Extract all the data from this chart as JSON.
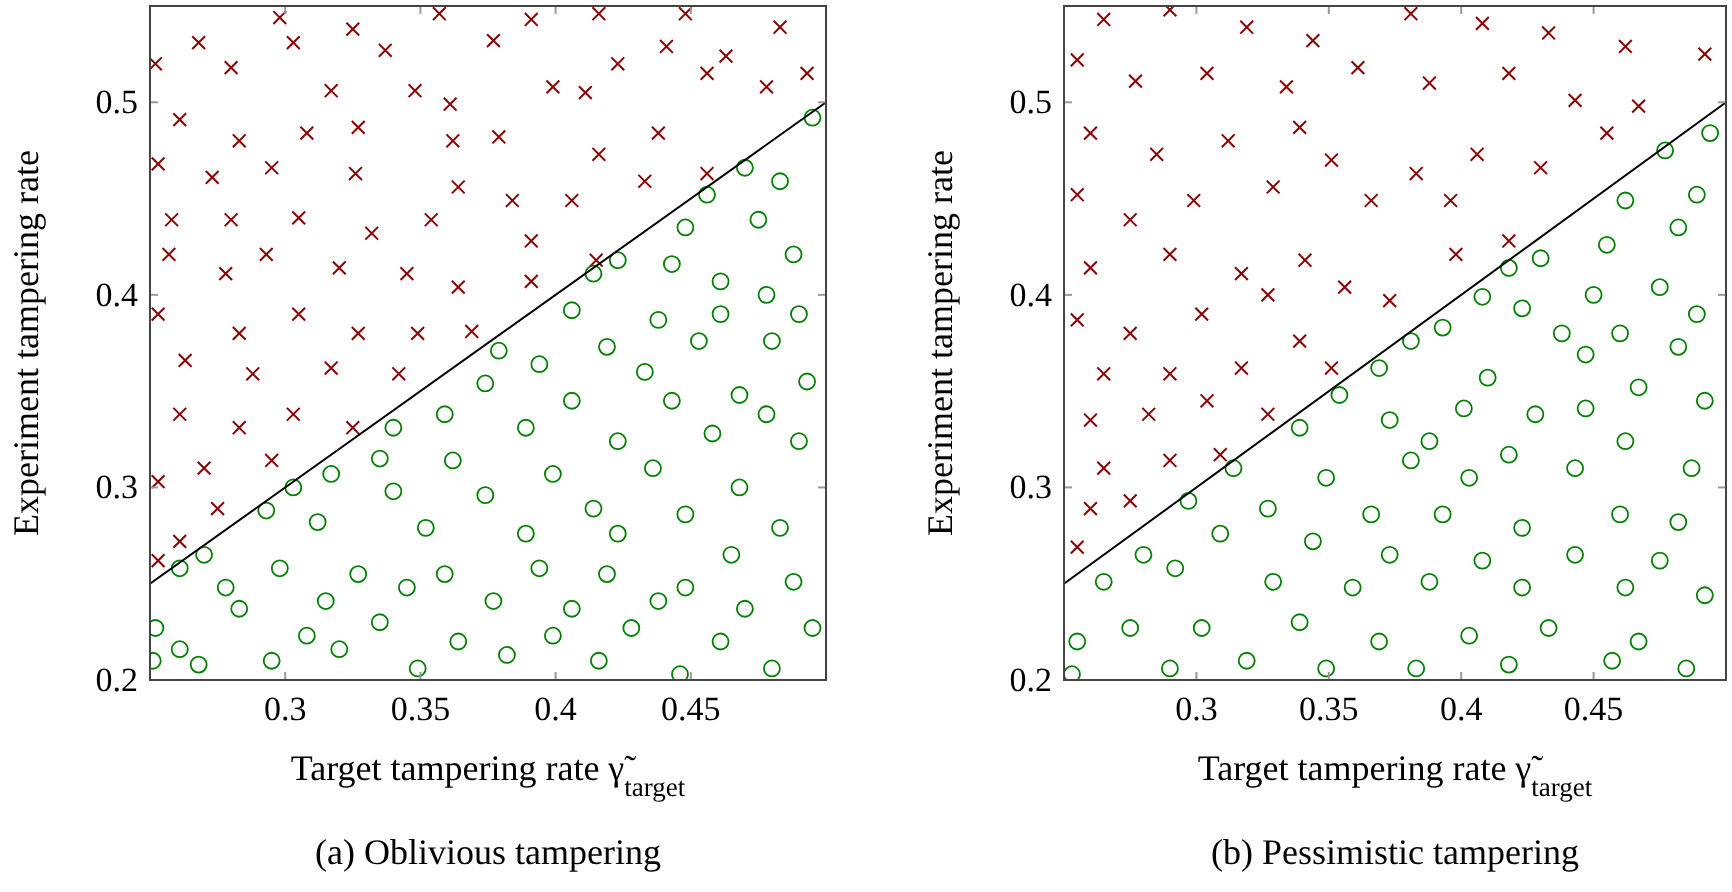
{
  "chart_data": [
    {
      "type": "scatter",
      "title": "(a) Oblivious tampering",
      "xlabel": "Target tampering rate γ̃$_{target}$",
      "ylabel": "Experiment tampering rate",
      "xlim": [
        0.25,
        0.5
      ],
      "ylim": [
        0.2,
        0.55
      ],
      "xticks": [
        0.3,
        0.35,
        0.4,
        0.45
      ],
      "yticks": [
        0.2,
        0.3,
        0.4,
        0.5
      ],
      "series": [
        {
          "marker": "cross",
          "color": "#8b0000",
          "x": [
            0.298,
            0.325,
            0.357,
            0.391,
            0.416,
            0.448,
            0.483,
            0.268,
            0.303,
            0.337,
            0.377,
            0.423,
            0.441,
            0.463,
            0.493,
            0.252,
            0.28,
            0.317,
            0.348,
            0.361,
            0.399,
            0.411,
            0.456,
            0.478,
            0.261,
            0.283,
            0.308,
            0.327,
            0.362,
            0.379,
            0.416,
            0.438,
            0.253,
            0.273,
            0.295,
            0.326,
            0.364,
            0.384,
            0.406,
            0.433,
            0.456,
            0.258,
            0.28,
            0.305,
            0.332,
            0.354,
            0.391,
            0.257,
            0.278,
            0.293,
            0.32,
            0.345,
            0.364,
            0.391,
            0.415,
            0.253,
            0.283,
            0.305,
            0.327,
            0.349,
            0.369,
            0.263,
            0.288,
            0.317,
            0.342,
            0.261,
            0.283,
            0.303,
            0.325,
            0.27,
            0.295,
            0.253,
            0.275,
            0.261,
            0.253
          ],
          "values": [
            0.544,
            0.538,
            0.546,
            0.543,
            0.546,
            0.546,
            0.539,
            0.531,
            0.531,
            0.527,
            0.532,
            0.52,
            0.529,
            0.524,
            0.515,
            0.52,
            0.518,
            0.506,
            0.506,
            0.499,
            0.508,
            0.505,
            0.515,
            0.508,
            0.491,
            0.48,
            0.484,
            0.487,
            0.48,
            0.482,
            0.473,
            0.484,
            0.468,
            0.461,
            0.466,
            0.463,
            0.456,
            0.449,
            0.449,
            0.459,
            0.463,
            0.439,
            0.439,
            0.44,
            0.432,
            0.439,
            0.428,
            0.421,
            0.411,
            0.421,
            0.414,
            0.411,
            0.404,
            0.407,
            0.418,
            0.39,
            0.38,
            0.39,
            0.38,
            0.38,
            0.381,
            0.366,
            0.359,
            0.362,
            0.359,
            0.338,
            0.331,
            0.338,
            0.331,
            0.31,
            0.314,
            0.303,
            0.289,
            0.272,
            0.262
          ]
        },
        {
          "marker": "circle",
          "color": "#008000",
          "x": [
            0.495,
            0.47,
            0.483,
            0.456,
            0.475,
            0.448,
            0.488,
            0.423,
            0.461,
            0.478,
            0.443,
            0.414,
            0.49,
            0.461,
            0.438,
            0.406,
            0.419,
            0.453,
            0.48,
            0.379,
            0.394,
            0.433,
            0.468,
            0.493,
            0.374,
            0.406,
            0.443,
            0.478,
            0.359,
            0.34,
            0.389,
            0.423,
            0.458,
            0.49,
            0.335,
            0.362,
            0.399,
            0.436,
            0.468,
            0.303,
            0.317,
            0.34,
            0.374,
            0.414,
            0.448,
            0.483,
            0.293,
            0.312,
            0.352,
            0.389,
            0.423,
            0.465,
            0.27,
            0.298,
            0.327,
            0.359,
            0.394,
            0.419,
            0.448,
            0.488,
            0.261,
            0.278,
            0.315,
            0.345,
            0.377,
            0.406,
            0.438,
            0.47,
            0.252,
            0.283,
            0.308,
            0.335,
            0.364,
            0.399,
            0.428,
            0.461,
            0.495,
            0.261,
            0.295,
            0.32,
            0.349,
            0.382,
            0.416,
            0.446,
            0.48,
            0.251,
            0.268
          ],
          "values": [
            0.492,
            0.466,
            0.459,
            0.452,
            0.439,
            0.435,
            0.421,
            0.418,
            0.407,
            0.4,
            0.416,
            0.411,
            0.39,
            0.39,
            0.387,
            0.392,
            0.373,
            0.376,
            0.376,
            0.371,
            0.364,
            0.36,
            0.348,
            0.355,
            0.354,
            0.345,
            0.345,
            0.338,
            0.338,
            0.331,
            0.331,
            0.324,
            0.328,
            0.324,
            0.315,
            0.314,
            0.307,
            0.31,
            0.3,
            0.3,
            0.307,
            0.298,
            0.296,
            0.289,
            0.286,
            0.279,
            0.288,
            0.282,
            0.279,
            0.276,
            0.276,
            0.265,
            0.265,
            0.258,
            0.255,
            0.255,
            0.258,
            0.255,
            0.248,
            0.251,
            0.258,
            0.248,
            0.241,
            0.248,
            0.241,
            0.237,
            0.241,
            0.237,
            0.227,
            0.237,
            0.223,
            0.23,
            0.22,
            0.223,
            0.227,
            0.22,
            0.227,
            0.216,
            0.21,
            0.216,
            0.206,
            0.213,
            0.21,
            0.203,
            0.206,
            0.21,
            0.208
          ]
        },
        {
          "type": "line",
          "marker": "none",
          "line_style": "solid",
          "color": "#000000",
          "x": [
            0.25,
            0.5
          ],
          "values": [
            0.25,
            0.5
          ]
        }
      ]
    },
    {
      "type": "scatter",
      "title": "(b) Pessimistic tampering",
      "xlabel": "Target tampering rate γ̃$_{target}$",
      "ylabel": "Experiment tampering rate",
      "xlim": [
        0.25,
        0.5
      ],
      "ylim": [
        0.2,
        0.55
      ],
      "xticks": [
        0.3,
        0.35,
        0.4,
        0.45
      ],
      "yticks": [
        0.2,
        0.3,
        0.4,
        0.5
      ],
      "series": [
        {
          "marker": "cross",
          "color": "#8b0000",
          "x": [
            0.265,
            0.29,
            0.319,
            0.344,
            0.381,
            0.408,
            0.433,
            0.462,
            0.492,
            0.255,
            0.277,
            0.304,
            0.334,
            0.361,
            0.388,
            0.418,
            0.443,
            0.467,
            0.26,
            0.285,
            0.312,
            0.339,
            0.351,
            0.383,
            0.406,
            0.43,
            0.455,
            0.255,
            0.275,
            0.299,
            0.329,
            0.366,
            0.396,
            0.418,
            0.26,
            0.29,
            0.317,
            0.341,
            0.373,
            0.398,
            0.255,
            0.275,
            0.302,
            0.327,
            0.356,
            0.265,
            0.29,
            0.317,
            0.339,
            0.26,
            0.282,
            0.304,
            0.327,
            0.351,
            0.265,
            0.29,
            0.309,
            0.26,
            0.275,
            0.255
          ],
          "values": [
            0.543,
            0.548,
            0.539,
            0.532,
            0.546,
            0.541,
            0.536,
            0.529,
            0.525,
            0.522,
            0.511,
            0.515,
            0.508,
            0.518,
            0.51,
            0.515,
            0.501,
            0.498,
            0.484,
            0.473,
            0.48,
            0.487,
            0.47,
            0.463,
            0.473,
            0.466,
            0.484,
            0.452,
            0.439,
            0.449,
            0.456,
            0.449,
            0.449,
            0.428,
            0.414,
            0.421,
            0.411,
            0.418,
            0.397,
            0.421,
            0.387,
            0.38,
            0.39,
            0.4,
            0.404,
            0.359,
            0.359,
            0.362,
            0.376,
            0.335,
            0.338,
            0.345,
            0.338,
            0.362,
            0.31,
            0.314,
            0.317,
            0.289,
            0.293,
            0.269
          ]
        },
        {
          "marker": "circle",
          "color": "#008000",
          "x": [
            0.494,
            0.477,
            0.489,
            0.462,
            0.482,
            0.455,
            0.43,
            0.418,
            0.475,
            0.45,
            0.408,
            0.489,
            0.423,
            0.46,
            0.393,
            0.438,
            0.482,
            0.381,
            0.41,
            0.447,
            0.369,
            0.467,
            0.492,
            0.401,
            0.428,
            0.447,
            0.354,
            0.373,
            0.339,
            0.388,
            0.418,
            0.462,
            0.487,
            0.314,
            0.349,
            0.381,
            0.403,
            0.443,
            0.297,
            0.327,
            0.366,
            0.393,
            0.423,
            0.46,
            0.482,
            0.28,
            0.309,
            0.344,
            0.373,
            0.408,
            0.443,
            0.475,
            0.265,
            0.292,
            0.329,
            0.359,
            0.388,
            0.423,
            0.462,
            0.492,
            0.255,
            0.275,
            0.302,
            0.339,
            0.369,
            0.403,
            0.433,
            0.467,
            0.253,
            0.29,
            0.319,
            0.349,
            0.383,
            0.418,
            0.457,
            0.485
          ],
          "values": [
            0.484,
            0.475,
            0.452,
            0.449,
            0.435,
            0.426,
            0.419,
            0.414,
            0.404,
            0.4,
            0.399,
            0.39,
            0.393,
            0.38,
            0.383,
            0.38,
            0.373,
            0.376,
            0.357,
            0.369,
            0.362,
            0.352,
            0.345,
            0.341,
            0.338,
            0.341,
            0.348,
            0.335,
            0.331,
            0.324,
            0.317,
            0.324,
            0.31,
            0.31,
            0.305,
            0.314,
            0.305,
            0.31,
            0.293,
            0.289,
            0.286,
            0.286,
            0.279,
            0.286,
            0.282,
            0.265,
            0.276,
            0.272,
            0.265,
            0.262,
            0.265,
            0.262,
            0.251,
            0.258,
            0.251,
            0.248,
            0.251,
            0.248,
            0.248,
            0.244,
            0.22,
            0.227,
            0.227,
            0.23,
            0.22,
            0.223,
            0.227,
            0.22,
            0.203,
            0.206,
            0.21,
            0.206,
            0.206,
            0.208,
            0.21,
            0.206
          ]
        },
        {
          "type": "line",
          "marker": "none",
          "line_style": "solid",
          "color": "#000000",
          "x": [
            0.25,
            0.5
          ],
          "values": [
            0.25,
            0.5
          ]
        }
      ]
    }
  ]
}
